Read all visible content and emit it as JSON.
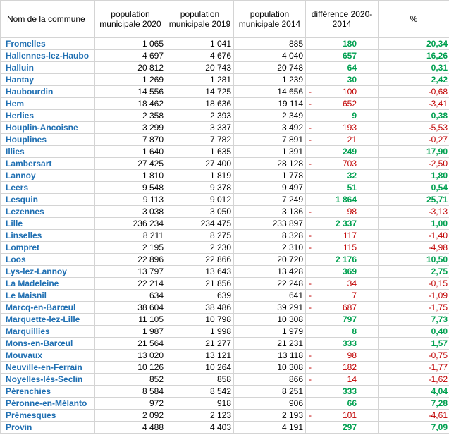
{
  "headers": {
    "name": "Nom de la commune",
    "pop2020": "population municipale 2020",
    "pop2019": "population municipale 2019",
    "pop2014": "population municipale 2014",
    "diff": "différence 2020-2014",
    "pct": "%"
  },
  "rows": [
    {
      "name": "Fromelles",
      "pop2020": "1 065",
      "pop2019": "1 041",
      "pop2014": "885",
      "diff": "180",
      "pct": "20,34",
      "sign": "pos"
    },
    {
      "name": "Hallennes-lez-Haubo",
      "pop2020": "4 697",
      "pop2019": "4 676",
      "pop2014": "4 040",
      "diff": "657",
      "pct": "16,26",
      "sign": "pos"
    },
    {
      "name": "Halluin",
      "pop2020": "20 812",
      "pop2019": "20 743",
      "pop2014": "20 748",
      "diff": "64",
      "pct": "0,31",
      "sign": "pos"
    },
    {
      "name": "Hantay",
      "pop2020": "1 269",
      "pop2019": "1 281",
      "pop2014": "1 239",
      "diff": "30",
      "pct": "2,42",
      "sign": "pos"
    },
    {
      "name": "Haubourdin",
      "pop2020": "14 556",
      "pop2019": "14 725",
      "pop2014": "14 656",
      "diff": "100",
      "pct": "-0,68",
      "sign": "neg"
    },
    {
      "name": "Hem",
      "pop2020": "18 462",
      "pop2019": "18 636",
      "pop2014": "19 114",
      "diff": "652",
      "pct": "-3,41",
      "sign": "neg"
    },
    {
      "name": "Herlies",
      "pop2020": "2 358",
      "pop2019": "2 393",
      "pop2014": "2 349",
      "diff": "9",
      "pct": "0,38",
      "sign": "pos"
    },
    {
      "name": "Houplin-Ancoisne",
      "pop2020": "3 299",
      "pop2019": "3 337",
      "pop2014": "3 492",
      "diff": "193",
      "pct": "-5,53",
      "sign": "neg"
    },
    {
      "name": "Houplines",
      "pop2020": "7 870",
      "pop2019": "7 782",
      "pop2014": "7 891",
      "diff": "21",
      "pct": "-0,27",
      "sign": "neg"
    },
    {
      "name": "Illies",
      "pop2020": "1 640",
      "pop2019": "1 635",
      "pop2014": "1 391",
      "diff": "249",
      "pct": "17,90",
      "sign": "pos"
    },
    {
      "name": "Lambersart",
      "pop2020": "27 425",
      "pop2019": "27 400",
      "pop2014": "28 128",
      "diff": "703",
      "pct": "-2,50",
      "sign": "neg"
    },
    {
      "name": "Lannoy",
      "pop2020": "1 810",
      "pop2019": "1 819",
      "pop2014": "1 778",
      "diff": "32",
      "pct": "1,80",
      "sign": "pos"
    },
    {
      "name": "Leers",
      "pop2020": "9 548",
      "pop2019": "9 378",
      "pop2014": "9 497",
      "diff": "51",
      "pct": "0,54",
      "sign": "pos"
    },
    {
      "name": "Lesquin",
      "pop2020": "9 113",
      "pop2019": "9 012",
      "pop2014": "7 249",
      "diff": "1 864",
      "pct": "25,71",
      "sign": "pos"
    },
    {
      "name": "Lezennes",
      "pop2020": "3 038",
      "pop2019": "3 050",
      "pop2014": "3 136",
      "diff": "98",
      "pct": "-3,13",
      "sign": "neg"
    },
    {
      "name": "Lille",
      "pop2020": "236 234",
      "pop2019": "234 475",
      "pop2014": "233 897",
      "diff": "2 337",
      "pct": "1,00",
      "sign": "pos"
    },
    {
      "name": "Linselles",
      "pop2020": "8 211",
      "pop2019": "8 275",
      "pop2014": "8 328",
      "diff": "117",
      "pct": "-1,40",
      "sign": "neg"
    },
    {
      "name": "Lompret",
      "pop2020": "2 195",
      "pop2019": "2 230",
      "pop2014": "2 310",
      "diff": "115",
      "pct": "-4,98",
      "sign": "neg"
    },
    {
      "name": "Loos",
      "pop2020": "22 896",
      "pop2019": "22 866",
      "pop2014": "20 720",
      "diff": "2 176",
      "pct": "10,50",
      "sign": "pos"
    },
    {
      "name": "Lys-lez-Lannoy",
      "pop2020": "13 797",
      "pop2019": "13 643",
      "pop2014": "13 428",
      "diff": "369",
      "pct": "2,75",
      "sign": "pos"
    },
    {
      "name": "La Madeleine",
      "pop2020": "22 214",
      "pop2019": "21 856",
      "pop2014": "22 248",
      "diff": "34",
      "pct": "-0,15",
      "sign": "neg"
    },
    {
      "name": "Le Maisnil",
      "pop2020": "634",
      "pop2019": "639",
      "pop2014": "641",
      "diff": "7",
      "pct": "-1,09",
      "sign": "neg"
    },
    {
      "name": "Marcq-en-Barœul",
      "pop2020": "38 604",
      "pop2019": "38 486",
      "pop2014": "39 291",
      "diff": "687",
      "pct": "-1,75",
      "sign": "neg"
    },
    {
      "name": "Marquette-lez-Lille",
      "pop2020": "11 105",
      "pop2019": "10 798",
      "pop2014": "10 308",
      "diff": "797",
      "pct": "7,73",
      "sign": "pos"
    },
    {
      "name": "Marquillies",
      "pop2020": "1 987",
      "pop2019": "1 998",
      "pop2014": "1 979",
      "diff": "8",
      "pct": "0,40",
      "sign": "pos"
    },
    {
      "name": "Mons-en-Barœul",
      "pop2020": "21 564",
      "pop2019": "21 277",
      "pop2014": "21 231",
      "diff": "333",
      "pct": "1,57",
      "sign": "pos"
    },
    {
      "name": "Mouvaux",
      "pop2020": "13 020",
      "pop2019": "13 121",
      "pop2014": "13 118",
      "diff": "98",
      "pct": "-0,75",
      "sign": "neg"
    },
    {
      "name": "Neuville-en-Ferrain",
      "pop2020": "10 126",
      "pop2019": "10 264",
      "pop2014": "10 308",
      "diff": "182",
      "pct": "-1,77",
      "sign": "neg"
    },
    {
      "name": "Noyelles-lès-Seclin",
      "pop2020": "852",
      "pop2019": "858",
      "pop2014": "866",
      "diff": "14",
      "pct": "-1,62",
      "sign": "neg"
    },
    {
      "name": "Pérenchies",
      "pop2020": "8 584",
      "pop2019": "8 542",
      "pop2014": "8 251",
      "diff": "333",
      "pct": "4,04",
      "sign": "pos"
    },
    {
      "name": "Péronne-en-Mélanto",
      "pop2020": "972",
      "pop2019": "918",
      "pop2014": "906",
      "diff": "66",
      "pct": "7,28",
      "sign": "pos"
    },
    {
      "name": "Prémesques",
      "pop2020": "2 092",
      "pop2019": "2 123",
      "pop2014": "2 193",
      "diff": "101",
      "pct": "-4,61",
      "sign": "neg"
    },
    {
      "name": "Provin",
      "pop2020": "4 488",
      "pop2019": "4 403",
      "pop2014": "4 191",
      "diff": "297",
      "pct": "7,09",
      "sign": "pos"
    }
  ],
  "neg_marker": "-",
  "colors": {
    "name_text": "#1f6fb2",
    "positive": "#00a050",
    "negative": "#c00000",
    "grid": "#d4d4d4"
  }
}
